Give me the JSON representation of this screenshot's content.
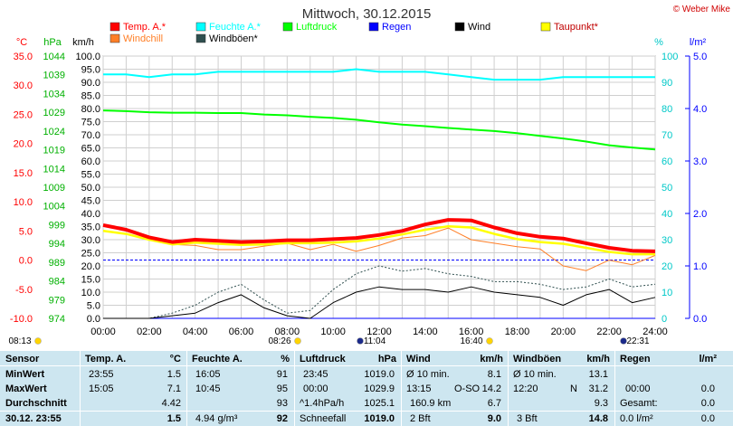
{
  "header": {
    "title": "Mittwoch, 30.12.2015",
    "copyright": "© Weber Mike"
  },
  "legend": [
    {
      "label": "Temp. A.*",
      "color": "#ff0000"
    },
    {
      "label": "Feuchte A.*",
      "color": "#00ffff"
    },
    {
      "label": "Luftdruck",
      "color": "#00ff00"
    },
    {
      "label": "Regen",
      "color": "#0000ff"
    },
    {
      "label": "Wind",
      "color": "#000000"
    },
    {
      "label": "Taupunkt*",
      "color": "#ffff00"
    },
    {
      "label": "Windchill",
      "color": "#ff7f27"
    },
    {
      "label": "Windböen*",
      "color": "#2f4f4f"
    }
  ],
  "axes": {
    "temp_unit": "°C",
    "pressure_unit": "hPa",
    "wind_unit": "km/h",
    "humidity_unit": "%",
    "rain_unit": "l/m²",
    "temp_ticks": [
      "35.0",
      "30.0",
      "25.0",
      "20.0",
      "15.0",
      "10.0",
      "5.0",
      "0.0",
      "-5.0",
      "-10.0"
    ],
    "pressure_ticks": [
      "1044",
      "1039",
      "1034",
      "1029",
      "1024",
      "1019",
      "1014",
      "1009",
      "1004",
      "999",
      "994",
      "989",
      "984",
      "979",
      "974"
    ],
    "wind_ticks": [
      "100.0",
      "95.0",
      "90.0",
      "85.0",
      "80.0",
      "75.0",
      "70.0",
      "65.0",
      "60.0",
      "55.0",
      "50.0",
      "45.0",
      "40.0",
      "35.0",
      "30.0",
      "25.0",
      "20.0",
      "15.0",
      "10.0",
      "5.0",
      "0.0"
    ],
    "humidity_ticks": [
      "100",
      "90",
      "80",
      "70",
      "60",
      "50",
      "40",
      "30",
      "20",
      "10",
      "0"
    ],
    "rain_ticks": [
      "5.0",
      "4.0",
      "3.0",
      "2.0",
      "1.0",
      "0.0"
    ],
    "time_ticks": [
      "00:00",
      "02:00",
      "04:00",
      "06:00",
      "08:00",
      "10:00",
      "12:00",
      "14:00",
      "16:00",
      "18:00",
      "20:00",
      "22:00",
      "24:00"
    ]
  },
  "sun_events": [
    {
      "label": "08:13",
      "type": "sunrise"
    },
    {
      "label": "08:26",
      "type": "sunrise"
    },
    {
      "label": "11:04",
      "type": "moon"
    },
    {
      "label": "16:40",
      "type": "sunset"
    },
    {
      "label": "22:31",
      "type": "moon"
    }
  ],
  "chart_data": {
    "type": "line",
    "x": [
      "00:00",
      "01:00",
      "02:00",
      "03:00",
      "04:00",
      "05:00",
      "06:00",
      "07:00",
      "08:00",
      "09:00",
      "10:00",
      "11:00",
      "12:00",
      "13:00",
      "14:00",
      "15:00",
      "16:00",
      "17:00",
      "18:00",
      "19:00",
      "20:00",
      "21:00",
      "22:00",
      "23:00",
      "24:00"
    ],
    "series": [
      {
        "name": "Temp. A.*",
        "unit": "°C",
        "axis": "temp",
        "color": "#ff0000",
        "values": [
          6.0,
          5.2,
          3.9,
          3.1,
          3.5,
          3.3,
          3.1,
          3.2,
          3.4,
          3.4,
          3.6,
          3.8,
          4.3,
          5.0,
          6.1,
          6.9,
          6.8,
          5.6,
          4.6,
          4.0,
          3.7,
          2.9,
          2.1,
          1.6,
          1.5
        ]
      },
      {
        "name": "Feuchte A.*",
        "unit": "%",
        "axis": "humidity",
        "color": "#00ffff",
        "values": [
          93,
          93,
          92,
          93,
          93,
          94,
          94,
          94,
          94,
          94,
          94,
          95,
          94,
          94,
          94,
          93,
          92,
          91,
          91,
          91,
          92,
          92,
          92,
          92,
          92
        ]
      },
      {
        "name": "Luftdruck",
        "unit": "hPa",
        "axis": "pressure",
        "color": "#00ff00",
        "values": [
          1029.5,
          1029.3,
          1029.0,
          1028.9,
          1028.9,
          1028.8,
          1028.8,
          1028.4,
          1028.2,
          1027.8,
          1027.5,
          1027.0,
          1026.3,
          1025.7,
          1025.3,
          1024.8,
          1024.4,
          1024.0,
          1023.4,
          1022.7,
          1022.0,
          1021.2,
          1020.2,
          1019.6,
          1019.1
        ]
      },
      {
        "name": "Taupunkt*",
        "unit": "°C",
        "axis": "temp",
        "color": "#ffff00",
        "values": [
          5.0,
          4.5,
          3.5,
          2.7,
          3.0,
          2.8,
          2.6,
          2.7,
          2.9,
          2.9,
          3.0,
          3.2,
          3.7,
          4.4,
          5.2,
          5.8,
          5.6,
          4.5,
          3.6,
          3.1,
          2.8,
          2.1,
          1.4,
          1.0,
          1.0
        ]
      },
      {
        "name": "Windchill",
        "unit": "°C",
        "axis": "temp",
        "color": "#ff7f27",
        "values": [
          5.0,
          4.5,
          3.5,
          2.7,
          2.5,
          1.8,
          1.8,
          2.4,
          2.9,
          1.8,
          2.7,
          1.5,
          2.5,
          3.8,
          4.2,
          5.5,
          3.5,
          2.9,
          2.3,
          1.9,
          -1.0,
          -1.8,
          0.0,
          -0.8,
          0.8
        ]
      },
      {
        "name": "Wind",
        "unit": "km/h",
        "axis": "wind",
        "color": "#000000",
        "values": [
          0,
          0,
          0,
          1,
          2,
          6,
          9,
          4,
          1,
          0,
          6,
          10,
          12,
          11,
          11,
          10,
          12,
          10,
          9,
          8,
          5,
          9,
          11,
          6,
          8
        ]
      },
      {
        "name": "Windböen*",
        "unit": "km/h",
        "axis": "wind",
        "color": "#2f4f4f",
        "values": [
          0,
          0,
          0,
          2,
          5,
          10,
          13,
          7,
          2,
          3,
          11,
          17,
          20,
          18,
          19,
          17,
          16,
          14,
          14,
          13,
          11,
          12,
          15,
          12,
          13
        ]
      },
      {
        "name": "Regen",
        "unit": "l/m²",
        "axis": "rain",
        "color": "#0000ff",
        "values": [
          0,
          0,
          0,
          0,
          0,
          0,
          0,
          0,
          0,
          0,
          0,
          0,
          0,
          0,
          0,
          0,
          0,
          0,
          0,
          0,
          0,
          0,
          0,
          0,
          0
        ]
      }
    ],
    "reference_line": {
      "value": 0.0,
      "axis": "temp",
      "color": "#0000ff"
    },
    "ranges": {
      "temp": [
        -10,
        35
      ],
      "pressure": [
        974,
        1044
      ],
      "wind": [
        0,
        100
      ],
      "humidity": [
        0,
        100
      ],
      "rain": [
        0,
        5
      ]
    },
    "grid": true
  },
  "table": {
    "headers": [
      {
        "label": "Sensor"
      },
      {
        "label": "Temp. A.",
        "unit": "°C"
      },
      {
        "label": "Feuchte A.",
        "unit": "%"
      },
      {
        "label": "Luftdruck",
        "unit": "hPa"
      },
      {
        "label": "Wind",
        "unit": "km/h"
      },
      {
        "label": "Windböen",
        "unit": "km/h"
      },
      {
        "label": "Regen",
        "unit": "l/m²"
      }
    ],
    "rows": [
      {
        "label": "MinWert",
        "cells": [
          [
            "23:55",
            "1.5"
          ],
          [
            "16:05",
            "91"
          ],
          [
            "23:45",
            "1019.0"
          ],
          [
            "Ø 10 min.",
            "",
            "8.1"
          ],
          [
            "Ø 10 min.",
            "",
            "13.1"
          ],
          [
            "",
            ""
          ]
        ]
      },
      {
        "label": "MaxWert",
        "cells": [
          [
            "15:05",
            "7.1"
          ],
          [
            "10:45",
            "95"
          ],
          [
            "00:00",
            "1029.9"
          ],
          [
            "13:15",
            "O-SO",
            "14.2"
          ],
          [
            "12:20",
            "N",
            "31.2"
          ],
          [
            "00:00",
            "0.0"
          ]
        ]
      },
      {
        "label": "Durchschnitt",
        "cells": [
          [
            "",
            "4.42"
          ],
          [
            "",
            "93"
          ],
          [
            "^1.4hPa/h",
            "1025.1"
          ],
          [
            "160.9 km",
            "",
            "6.7"
          ],
          [
            "",
            "",
            "9.3"
          ],
          [
            "Gesamt:",
            "0.0"
          ]
        ]
      },
      {
        "label": "30.12. 23:55",
        "cells": [
          [
            "",
            "1.5"
          ],
          [
            "4.94 g/m³",
            "92"
          ],
          [
            "Schneefall",
            "1019.0"
          ],
          [
            "2 Bft",
            "",
            "9.0"
          ],
          [
            "3 Bft",
            "",
            "14.8"
          ],
          [
            "0.0 l/m²",
            "0.0"
          ]
        ]
      }
    ]
  }
}
